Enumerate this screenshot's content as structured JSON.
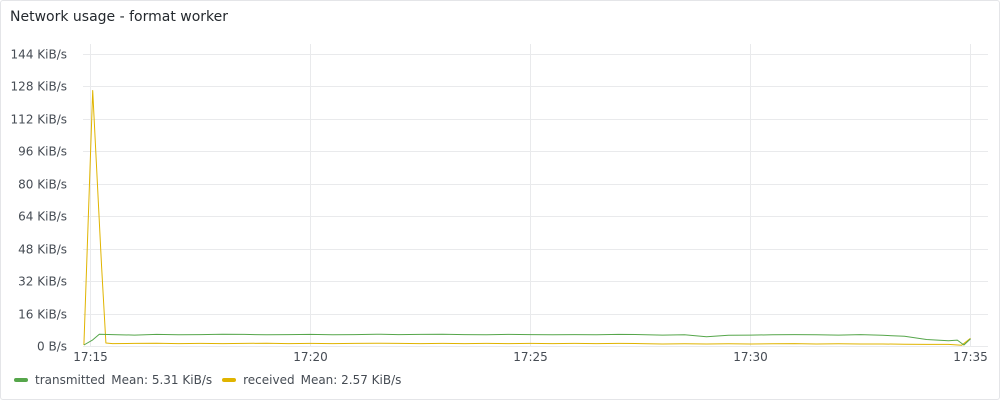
{
  "panel": {
    "title": "Network usage - format worker"
  },
  "chart_data": {
    "type": "line",
    "y_ticks": [
      {
        "value": 0,
        "label": "0 B/s"
      },
      {
        "value": 16,
        "label": "16 KiB/s"
      },
      {
        "value": 32,
        "label": "32 KiB/s"
      },
      {
        "value": 48,
        "label": "48 KiB/s"
      },
      {
        "value": 64,
        "label": "64 KiB/s"
      },
      {
        "value": 80,
        "label": "80 KiB/s"
      },
      {
        "value": 96,
        "label": "96 KiB/s"
      },
      {
        "value": 112,
        "label": "112 KiB/s"
      },
      {
        "value": 128,
        "label": "128 KiB/s"
      },
      {
        "value": 144,
        "label": "144 KiB/s"
      }
    ],
    "x_ticks": [
      {
        "value": 0,
        "label": "17:15"
      },
      {
        "value": 5,
        "label": "17:20"
      },
      {
        "value": 10,
        "label": "17:25"
      },
      {
        "value": 15,
        "label": "17:30"
      },
      {
        "value": 20,
        "label": "17:35"
      }
    ],
    "xlim": [
      -0.15,
      20
    ],
    "ylim": [
      0,
      144
    ],
    "grid": true,
    "legend_position": "bottom-left",
    "series": [
      {
        "name": "transmitted",
        "color": "#56a64b",
        "mean_label": "Mean: 5.31 KiB/s",
        "x": [
          -0.15,
          0.05,
          0.2,
          0.5,
          1,
          1.5,
          2,
          2.5,
          3,
          3.5,
          4,
          4.5,
          5,
          5.5,
          6,
          6.5,
          7,
          7.5,
          8,
          8.5,
          9,
          9.5,
          10,
          10.5,
          11,
          11.5,
          12,
          12.5,
          13,
          13.5,
          14,
          14.5,
          15,
          15.5,
          16,
          16.5,
          17,
          17.5,
          18,
          18.5,
          19,
          19.5,
          19.7,
          19.85,
          20
        ],
        "y": [
          0.5,
          3,
          5.8,
          5.6,
          5.4,
          5.7,
          5.5,
          5.6,
          5.8,
          5.7,
          5.5,
          5.6,
          5.7,
          5.5,
          5.6,
          5.8,
          5.6,
          5.7,
          5.8,
          5.6,
          5.5,
          5.7,
          5.6,
          5.5,
          5.6,
          5.5,
          5.7,
          5.6,
          5.4,
          5.5,
          4.6,
          5.3,
          5.4,
          5.5,
          5.6,
          5.5,
          5.4,
          5.6,
          5.3,
          4.8,
          3.2,
          2.6,
          2.9,
          0.5,
          3.5
        ]
      },
      {
        "name": "received",
        "color": "#e0b400",
        "mean_label": "Mean: 2.57 KiB/s",
        "x": [
          -0.15,
          0.05,
          0.25,
          0.35,
          0.5,
          1,
          1.5,
          2,
          2.5,
          3,
          3.5,
          4,
          4.5,
          5,
          5.5,
          6,
          6.5,
          7,
          7.5,
          8,
          8.5,
          9,
          9.5,
          10,
          10.5,
          11,
          11.5,
          12,
          12.5,
          13,
          13.5,
          14,
          14.5,
          15,
          15.5,
          16,
          16.5,
          17,
          17.5,
          18,
          18.5,
          19,
          19.5,
          19.8,
          20
        ],
        "y": [
          0.5,
          126,
          40,
          1.5,
          1.2,
          1.3,
          1.4,
          1.2,
          1.3,
          1.2,
          1.3,
          1.4,
          1.2,
          1.3,
          1.2,
          1.3,
          1.4,
          1.3,
          1.2,
          1.3,
          1.2,
          1.3,
          1.2,
          1.3,
          1.2,
          1.3,
          1.2,
          1.3,
          1.2,
          1.0,
          1.1,
          1.0,
          1.1,
          1.0,
          1.1,
          1.2,
          1.0,
          1.1,
          1.0,
          1.0,
          0.9,
          0.8,
          0.8,
          0.4,
          3.8
        ]
      }
    ]
  }
}
